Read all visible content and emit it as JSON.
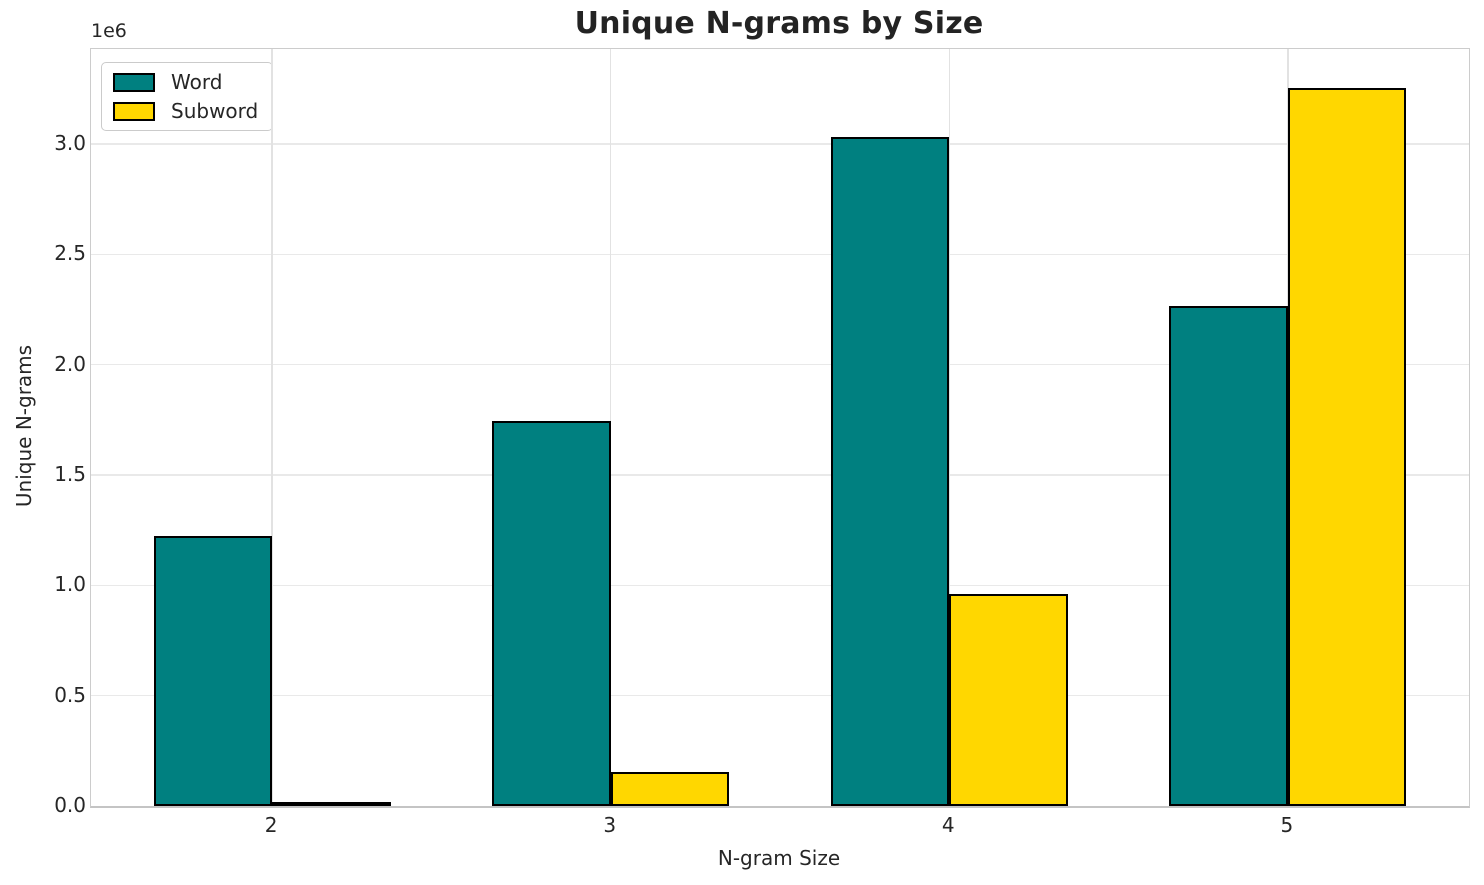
{
  "chart_data": {
    "type": "bar",
    "title": "Unique N-grams by Size",
    "xlabel": "N-gram Size",
    "ylabel": "Unique N-grams",
    "y_offset_label": "1e6",
    "categories": [
      "2",
      "3",
      "4",
      "5"
    ],
    "series": [
      {
        "name": "Word",
        "color": "#008080",
        "values": [
          1225000,
          1745000,
          3030000,
          2265000
        ]
      },
      {
        "name": "Subword",
        "color": "#FFD700",
        "values": [
          16000,
          155000,
          960000,
          3255000
        ]
      }
    ],
    "bar_edge_color": "#000000",
    "bar_width_fraction": 0.35,
    "ylim": [
      0,
      3430000
    ],
    "ytick_values": [
      0,
      500000,
      1000000,
      1500000,
      2000000,
      2500000,
      3000000
    ],
    "ytick_labels": [
      "0.0",
      "0.5",
      "1.0",
      "1.5",
      "2.0",
      "2.5",
      "3.0"
    ],
    "grid": true,
    "legend_position": "upper-left"
  }
}
